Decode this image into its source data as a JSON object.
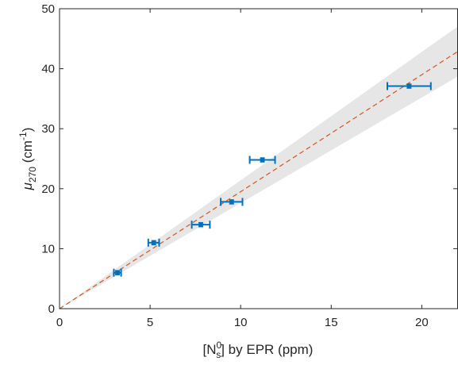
{
  "chart_data": {
    "type": "scatter",
    "xlim": [
      0,
      22
    ],
    "ylim": [
      0,
      50
    ],
    "x_ticks": [
      0,
      5,
      10,
      15,
      20
    ],
    "y_ticks": [
      0,
      10,
      20,
      30,
      40,
      50
    ],
    "xlabel": {
      "pre": "[N",
      "sup": "0",
      "sub": "s",
      "post": "] by EPR (ppm)"
    },
    "ylabel": {
      "mu": "μ",
      "sub": "270",
      "unit": " (cm",
      "sup": "-1",
      "close": ")"
    },
    "grid": false,
    "box": true,
    "series": [
      {
        "type": "errorbar",
        "color": "#0072BD",
        "points": [
          {
            "x": 3.2,
            "y": 6.0,
            "xerr": 0.2,
            "yerr": 0.3
          },
          {
            "x": 5.2,
            "y": 11.0,
            "xerr": 0.3,
            "yerr": 0.3
          },
          {
            "x": 7.8,
            "y": 14.0,
            "xerr": 0.5,
            "yerr": 0.3
          },
          {
            "x": 9.5,
            "y": 17.8,
            "xerr": 0.6,
            "yerr": 0.3
          },
          {
            "x": 11.2,
            "y": 24.8,
            "xerr": 0.7,
            "yerr": 0.3
          },
          {
            "x": 19.3,
            "y": 37.1,
            "xerr": 1.2,
            "yerr": 0.3
          }
        ]
      }
    ],
    "fit": {
      "type": "line",
      "style": "dashed",
      "color": "#D95319",
      "slope": 1.95,
      "intercept": 0
    },
    "confidence_band": {
      "color": "#e6e6e6",
      "upper_slope": 2.14,
      "lower_slope": 1.76
    }
  }
}
